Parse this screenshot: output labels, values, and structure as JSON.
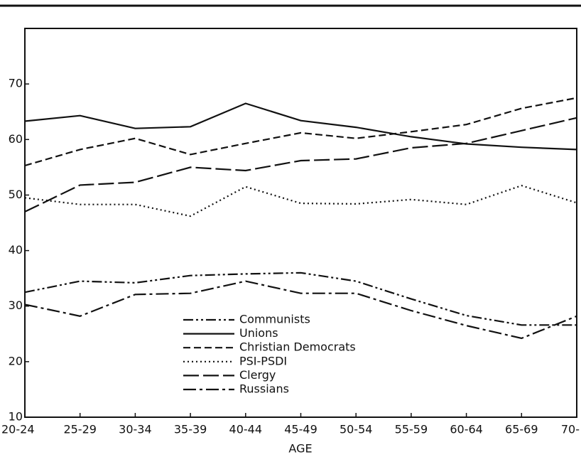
{
  "chart_data": {
    "type": "line",
    "x_label": "AGE",
    "categories": [
      "20-24",
      "25-29",
      "30-34",
      "35-39",
      "40-44",
      "45-49",
      "50-54",
      "55-59",
      "60-64",
      "65-69",
      "70-"
    ],
    "ylim": [
      10,
      80
    ],
    "yticks": [
      10,
      20,
      30,
      40,
      50,
      60,
      70
    ],
    "series": [
      {
        "name": "Communists",
        "color": "#111111",
        "dash": "14 4 3 4 3 4",
        "values": [
          32.5,
          34.5,
          34.2,
          35.5,
          35.8,
          36,
          34.5,
          31.3,
          28.3,
          26.6,
          26.6
        ]
      },
      {
        "name": "Unions",
        "color": "#111111",
        "dash": "none",
        "values": [
          63.3,
          64.3,
          62,
          62.3,
          66.5,
          63.4,
          62.2,
          60.5,
          59.2,
          58.6,
          58.2
        ]
      },
      {
        "name": "Christian Democrats",
        "color": "#111111",
        "dash": "10 5",
        "values": [
          55.3,
          58.2,
          60.2,
          57.3,
          59.3,
          61.2,
          60.2,
          61.4,
          62.7,
          65.6,
          67.5
        ]
      },
      {
        "name": "PSI-PSDI",
        "color": "#111111",
        "dash": "2 4",
        "values": [
          49.5,
          48.3,
          48.3,
          46.2,
          51.5,
          48.5,
          48.4,
          49.2,
          48.3,
          51.7,
          48.6
        ]
      },
      {
        "name": "Clergy",
        "color": "#111111",
        "dash": "22 6",
        "values": [
          47,
          51.8,
          52.3,
          55,
          54.4,
          56.2,
          56.5,
          58.5,
          59.3,
          61.6,
          63.9
        ]
      },
      {
        "name": "Russians",
        "color": "#111111",
        "dash": "18 5 4 5",
        "values": [
          30.3,
          28.2,
          32.1,
          32.3,
          34.5,
          32.3,
          32.3,
          29.2,
          26.5,
          24.2,
          28.2
        ]
      }
    ]
  }
}
